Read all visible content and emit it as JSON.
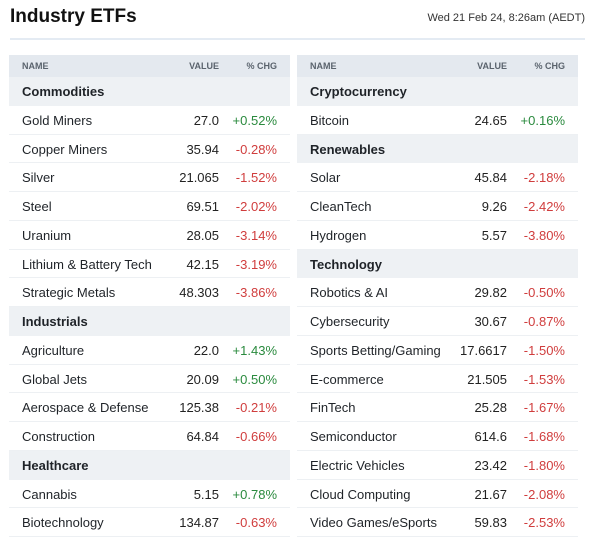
{
  "header": {
    "title": "Industry ETFs",
    "timestamp": "Wed 21 Feb 24, 8:26am (AEDT)"
  },
  "columns": {
    "name": "NAME",
    "value": "VALUE",
    "chg": "% CHG"
  },
  "colors": {
    "positive": "#2a8a3e",
    "negative": "#d03d3d",
    "header_bg": "#e4e9ef",
    "category_bg": "#eef1f4"
  },
  "left_table": [
    {
      "type": "category",
      "name": "Commodities"
    },
    {
      "type": "item",
      "name": "Gold Miners",
      "value": "27.0",
      "chg": "+0.52%",
      "dir": "pos"
    },
    {
      "type": "item",
      "name": "Copper Miners",
      "value": "35.94",
      "chg": "-0.28%",
      "dir": "neg"
    },
    {
      "type": "item",
      "name": "Silver",
      "value": "21.065",
      "chg": "-1.52%",
      "dir": "neg"
    },
    {
      "type": "item",
      "name": "Steel",
      "value": "69.51",
      "chg": "-2.02%",
      "dir": "neg"
    },
    {
      "type": "item",
      "name": "Uranium",
      "value": "28.05",
      "chg": "-3.14%",
      "dir": "neg"
    },
    {
      "type": "item",
      "name": "Lithium & Battery Tech",
      "value": "42.15",
      "chg": "-3.19%",
      "dir": "neg"
    },
    {
      "type": "item",
      "name": "Strategic Metals",
      "value": "48.303",
      "chg": "-3.86%",
      "dir": "neg"
    },
    {
      "type": "category",
      "name": "Industrials"
    },
    {
      "type": "item",
      "name": "Agriculture",
      "value": "22.0",
      "chg": "+1.43%",
      "dir": "pos"
    },
    {
      "type": "item",
      "name": "Global Jets",
      "value": "20.09",
      "chg": "+0.50%",
      "dir": "pos"
    },
    {
      "type": "item",
      "name": "Aerospace & Defense",
      "value": "125.38",
      "chg": "-0.21%",
      "dir": "neg"
    },
    {
      "type": "item",
      "name": "Construction",
      "value": "64.84",
      "chg": "-0.66%",
      "dir": "neg"
    },
    {
      "type": "category",
      "name": "Healthcare"
    },
    {
      "type": "item",
      "name": "Cannabis",
      "value": "5.15",
      "chg": "+0.78%",
      "dir": "pos"
    },
    {
      "type": "item",
      "name": "Biotechnology",
      "value": "134.87",
      "chg": "-0.63%",
      "dir": "neg"
    }
  ],
  "right_table": [
    {
      "type": "category",
      "name": "Cryptocurrency"
    },
    {
      "type": "item",
      "name": "Bitcoin",
      "value": "24.65",
      "chg": "+0.16%",
      "dir": "pos"
    },
    {
      "type": "category",
      "name": "Renewables"
    },
    {
      "type": "item",
      "name": "Solar",
      "value": "45.84",
      "chg": "-2.18%",
      "dir": "neg"
    },
    {
      "type": "item",
      "name": "CleanTech",
      "value": "9.26",
      "chg": "-2.42%",
      "dir": "neg"
    },
    {
      "type": "item",
      "name": "Hydrogen",
      "value": "5.57",
      "chg": "-3.80%",
      "dir": "neg"
    },
    {
      "type": "category",
      "name": "Technology"
    },
    {
      "type": "item",
      "name": "Robotics & AI",
      "value": "29.82",
      "chg": "-0.50%",
      "dir": "neg"
    },
    {
      "type": "item",
      "name": "Cybersecurity",
      "value": "30.67",
      "chg": "-0.87%",
      "dir": "neg"
    },
    {
      "type": "item",
      "name": "Sports Betting/Gaming",
      "value": "17.6617",
      "chg": "-1.50%",
      "dir": "neg"
    },
    {
      "type": "item",
      "name": "E-commerce",
      "value": "21.505",
      "chg": "-1.53%",
      "dir": "neg"
    },
    {
      "type": "item",
      "name": "FinTech",
      "value": "25.28",
      "chg": "-1.67%",
      "dir": "neg"
    },
    {
      "type": "item",
      "name": "Semiconductor",
      "value": "614.6",
      "chg": "-1.68%",
      "dir": "neg"
    },
    {
      "type": "item",
      "name": "Electric Vehicles",
      "value": "23.42",
      "chg": "-1.80%",
      "dir": "neg"
    },
    {
      "type": "item",
      "name": "Cloud Computing",
      "value": "21.67",
      "chg": "-2.08%",
      "dir": "neg"
    },
    {
      "type": "item",
      "name": "Video Games/eSports",
      "value": "59.83",
      "chg": "-2.53%",
      "dir": "neg"
    }
  ]
}
